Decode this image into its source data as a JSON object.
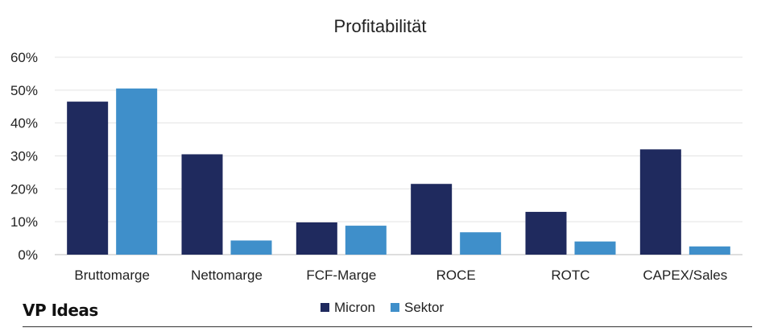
{
  "chart_data": {
    "type": "bar",
    "title": "Profitabilität",
    "xlabel": "",
    "ylabel": "",
    "categories": [
      "Bruttomarge",
      "Nettomarge",
      "FCF-Marge",
      "ROCE",
      "ROTC",
      "CAPEX/Sales"
    ],
    "series": [
      {
        "name": "Micron",
        "color": "#1f2a5e",
        "values": [
          46.5,
          30.5,
          9.8,
          21.5,
          13.0,
          32.0
        ]
      },
      {
        "name": "Sektor",
        "color": "#3f8fca",
        "values": [
          50.5,
          4.3,
          8.8,
          6.8,
          4.0,
          2.5
        ]
      }
    ],
    "ylim": [
      0,
      60
    ],
    "yticks": [
      "0%",
      "10%",
      "20%",
      "30%",
      "40%",
      "50%",
      "60%"
    ],
    "grid": true,
    "legend": "bottom-center"
  },
  "branding": {
    "logo_text": "VP Ideas"
  }
}
